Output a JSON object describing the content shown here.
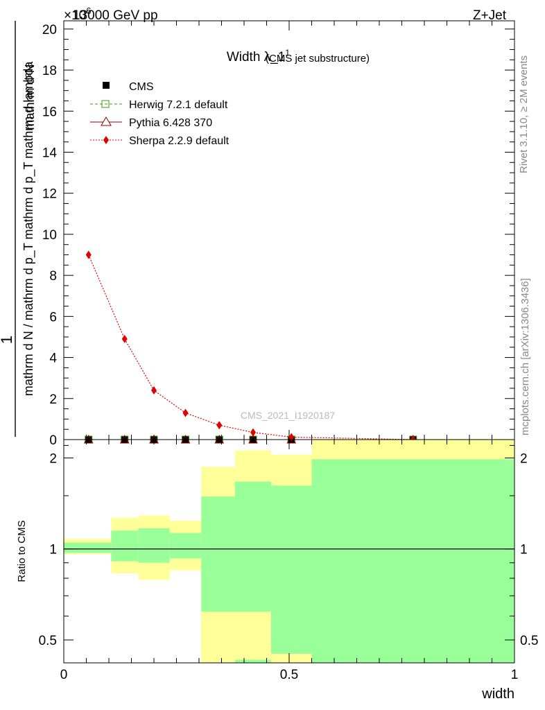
{
  "header": {
    "energy_label": "13000 GeV pp",
    "process_label": "Z+Jet",
    "exponent_label": "×10",
    "exponent_sup": "6"
  },
  "side_labels": {
    "rivet": "Rivet 3.1.10, ≥ 2M events",
    "mcplots": "mcplots.cern.ch [arXiv:1306.3436]"
  },
  "watermark": "CMS_2021_I1920187",
  "colors": {
    "cms": "#000000",
    "herwig": "#3a9a1a",
    "pythia": "#8b0000",
    "sherpa": "#e00000",
    "band_outer": "#ffff99",
    "band_inner": "#99ff99"
  },
  "chart_data": [
    {
      "type": "line",
      "title": "Width λ_1",
      "title_sup": "1",
      "subtitle": "(CMS jet substructure)",
      "xlabel": "width",
      "ylabel_num": "1",
      "ylabel_den": "mathrm d N / mathrm d p_T mathrm d p_T mathrm d lambda",
      "ylabel_top": "mathrm d²N",
      "xlim": [
        0,
        1
      ],
      "ylim": [
        0,
        20.4
      ],
      "y_scale_factor": 1000000,
      "yticks": [
        0,
        2,
        4,
        6,
        8,
        10,
        12,
        14,
        16,
        18,
        20
      ],
      "yticklabels": [
        "0",
        "2",
        "4",
        "6",
        "8",
        "10",
        "12",
        "14",
        "16",
        "18",
        "20"
      ],
      "legend": [
        "CMS",
        "Herwig 7.2.1 default",
        "Pythia 6.428 370",
        "Sherpa 2.2.9 default"
      ],
      "series": [
        {
          "name": "CMS",
          "x": [
            0.055,
            0.135,
            0.2,
            0.27,
            0.345,
            0.42,
            0.505,
            0.775
          ],
          "y": [
            0,
            0,
            0,
            0,
            0,
            0,
            0,
            0
          ]
        },
        {
          "name": "Herwig 7.2.1 default",
          "x": [
            0.055,
            0.135,
            0.2,
            0.27,
            0.345,
            0.42,
            0.505,
            0.775
          ],
          "y": [
            0,
            0,
            0,
            0,
            0,
            0,
            0,
            0
          ]
        },
        {
          "name": "Pythia 6.428 370",
          "x": [
            0.055,
            0.135,
            0.2,
            0.27,
            0.345,
            0.42,
            0.505,
            0.775
          ],
          "y": [
            0,
            0,
            0,
            0,
            0,
            0,
            0,
            0
          ]
        },
        {
          "name": "Sherpa 2.2.9 default",
          "x": [
            0.055,
            0.135,
            0.2,
            0.27,
            0.345,
            0.42,
            0.505,
            0.775
          ],
          "y": [
            9.0,
            4.9,
            2.4,
            1.3,
            0.7,
            0.35,
            0.12,
            0.0
          ]
        }
      ]
    },
    {
      "type": "area",
      "ylabel": "Ratio to CMS",
      "xlabel": "width",
      "xlim": [
        0,
        1
      ],
      "ylim": [
        0.42,
        2.3
      ],
      "yscale": "log",
      "xticks": [
        0,
        0.5,
        1
      ],
      "xticklabels": [
        "0",
        "0.5",
        "1"
      ],
      "yticks": [
        0.5,
        1,
        2
      ],
      "yticklabels": [
        "0.5",
        "1",
        "2"
      ],
      "reference_line": 1,
      "bins": [
        0,
        0.105,
        0.165,
        0.235,
        0.305,
        0.38,
        0.46,
        0.55,
        1.0
      ],
      "band_outer_lo": [
        0.96,
        0.83,
        0.79,
        0.85,
        0.42,
        0.42,
        0.42,
        0.42
      ],
      "band_outer_hi": [
        1.08,
        1.27,
        1.29,
        1.24,
        1.87,
        2.12,
        2.05,
        2.3
      ],
      "band_inner_lo": [
        0.97,
        0.91,
        0.9,
        0.93,
        0.42,
        0.42,
        0.42,
        0.42
      ],
      "band_inner_hi": [
        1.05,
        1.15,
        1.17,
        1.13,
        1.49,
        1.67,
        1.62,
        1.98
      ],
      "band_white_lo": [
        0,
        0,
        0,
        0,
        0.42,
        0.43,
        0.42,
        0.42
      ],
      "band_white_hi": [
        0,
        0,
        0,
        0,
        0.62,
        0.62,
        0.45,
        0.42
      ]
    }
  ]
}
